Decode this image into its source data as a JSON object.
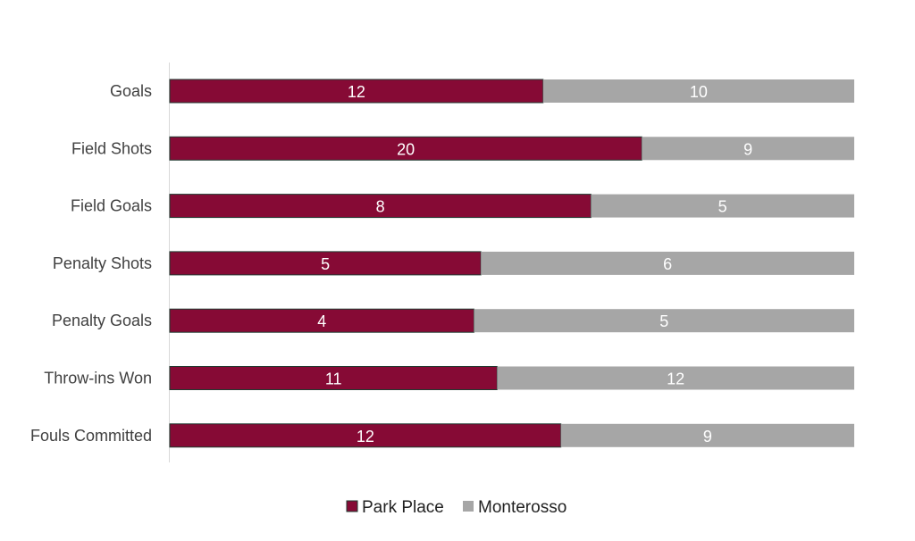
{
  "chart_data": {
    "type": "bar",
    "orientation": "horizontal",
    "stacking": "percent",
    "categories": [
      "Goals",
      "Field Shots",
      "Field Goals",
      "Penalty Shots",
      "Penalty Goals",
      "Throw-ins Won",
      "Fouls Committed"
    ],
    "series": [
      {
        "name": "Park Place",
        "values": [
          12,
          20,
          8,
          5,
          4,
          11,
          12
        ],
        "color": "#860A35"
      },
      {
        "name": "Monterosso",
        "values": [
          10,
          9,
          5,
          6,
          5,
          12,
          9
        ],
        "color": "#A6A6A6"
      }
    ],
    "title": "",
    "xlabel": "",
    "ylabel": "",
    "data_labels": true,
    "grid": false,
    "legend": "bottom"
  }
}
